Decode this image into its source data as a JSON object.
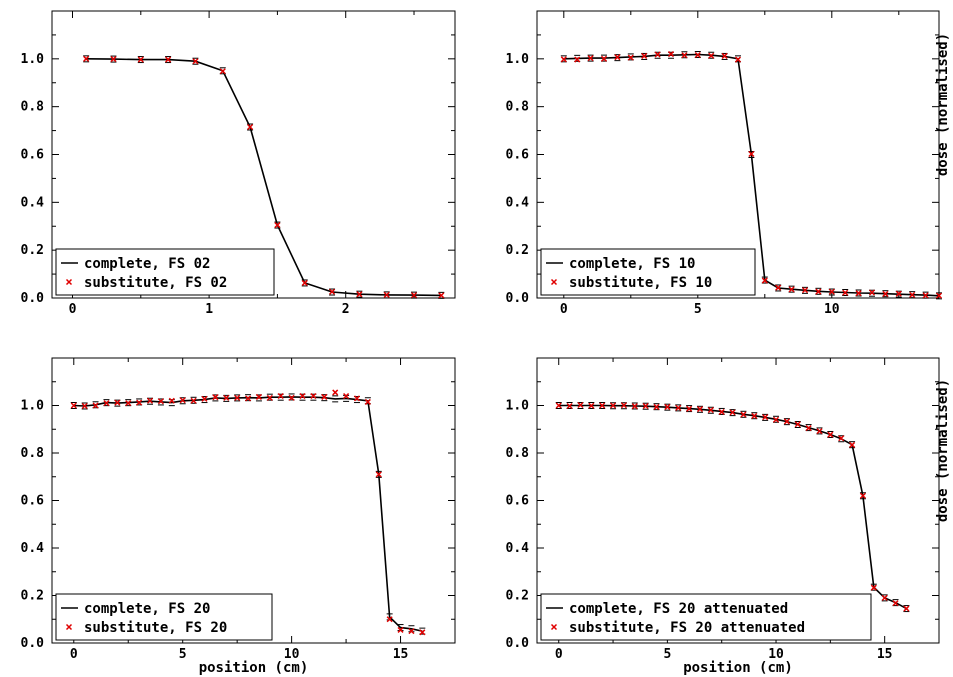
{
  "colors": {
    "complete_line": "#000000",
    "substitute_marker": "#e00000",
    "frame": "#000000",
    "background": "#ffffff"
  },
  "chart_data": [
    {
      "type": "line",
      "xlabel": "",
      "ylabel": "",
      "xlim": [
        -0.15,
        2.8
      ],
      "ylim": [
        0.0,
        1.2
      ],
      "x_ticks": [
        0,
        1,
        2
      ],
      "y_ticks": [
        0.0,
        0.2,
        0.4,
        0.6,
        0.8,
        1.0
      ],
      "legend": {
        "placement": "bottom-left",
        "entries": [
          "complete, FS 02",
          "substitute, FS 02"
        ]
      },
      "series": [
        {
          "name": "complete, FS 02",
          "style": "line",
          "x": [
            0.1,
            0.3,
            0.5,
            0.7,
            0.9,
            1.1,
            1.3,
            1.5,
            1.7,
            1.9,
            2.1,
            2.3,
            2.5,
            2.7
          ],
          "y": [
            1.0,
            0.999,
            0.997,
            0.997,
            0.99,
            0.95,
            0.715,
            0.305,
            0.063,
            0.025,
            0.016,
            0.013,
            0.012,
            0.011
          ]
        },
        {
          "name": "substitute, FS 02",
          "style": "marker",
          "x": [
            0.1,
            0.3,
            0.5,
            0.7,
            0.9,
            1.1,
            1.3,
            1.5,
            1.7,
            1.9,
            2.1,
            2.3,
            2.5,
            2.7
          ],
          "y": [
            1.0,
            0.999,
            0.997,
            0.997,
            0.99,
            0.948,
            0.715,
            0.305,
            0.063,
            0.026,
            0.016,
            0.013,
            0.012,
            0.011
          ]
        }
      ]
    },
    {
      "type": "line",
      "xlabel": "",
      "ylabel": "dose (normalised)",
      "xlim": [
        -1.0,
        14.0
      ],
      "ylim": [
        0.0,
        1.2
      ],
      "x_ticks": [
        0,
        5,
        10
      ],
      "y_ticks": [
        0.0,
        0.2,
        0.4,
        0.6,
        0.8,
        1.0
      ],
      "legend": {
        "placement": "bottom-left",
        "entries": [
          "complete, FS 10",
          "substitute, FS 10"
        ]
      },
      "series": [
        {
          "name": "complete, FS 10",
          "style": "line",
          "x": [
            0,
            0.5,
            1,
            1.5,
            2,
            2.5,
            3,
            3.5,
            4,
            4.5,
            5,
            5.5,
            6,
            6.5,
            7,
            7.5,
            8,
            8.5,
            9,
            9.5,
            10,
            10.5,
            11,
            11.5,
            12,
            12.5,
            13,
            13.5,
            14
          ],
          "y": [
            1.0,
            1.002,
            1.003,
            1.003,
            1.005,
            1.008,
            1.01,
            1.015,
            1.015,
            1.017,
            1.018,
            1.015,
            1.01,
            1.0,
            0.6,
            0.075,
            0.042,
            0.037,
            0.032,
            0.028,
            0.025,
            0.023,
            0.021,
            0.02,
            0.018,
            0.016,
            0.014,
            0.012,
            0.009
          ]
        },
        {
          "name": "substitute, FS 10",
          "style": "marker",
          "x": [
            0,
            0.5,
            1,
            1.5,
            2,
            2.5,
            3,
            3.5,
            4,
            4.5,
            5,
            5.5,
            6,
            6.5,
            7,
            7.5,
            8,
            8.5,
            9,
            9.5,
            10,
            10.5,
            11,
            11.5,
            12,
            12.5,
            13,
            13.5,
            14
          ],
          "y": [
            0.998,
            0.997,
            1.003,
            1.0,
            1.007,
            1.005,
            1.012,
            1.018,
            1.02,
            1.015,
            1.016,
            1.013,
            1.012,
            0.997,
            0.602,
            0.073,
            0.043,
            0.036,
            0.033,
            0.027,
            0.026,
            0.022,
            0.02,
            0.023,
            0.017,
            0.018,
            0.013,
            0.011,
            0.01
          ]
        }
      ]
    },
    {
      "type": "line",
      "xlabel": "position (cm)",
      "ylabel": "",
      "xlim": [
        -1.0,
        17.5
      ],
      "ylim": [
        0.0,
        1.2
      ],
      "x_ticks": [
        0,
        5,
        10,
        15
      ],
      "y_ticks": [
        0.0,
        0.2,
        0.4,
        0.6,
        0.8,
        1.0
      ],
      "legend": {
        "placement": "bottom-left",
        "entries": [
          "complete, FS 20",
          "substitute, FS 20"
        ]
      },
      "series": [
        {
          "name": "complete, FS 20",
          "style": "line",
          "x": [
            0,
            0.5,
            1,
            1.5,
            2,
            2.5,
            3,
            3.5,
            4,
            4.5,
            5,
            5.5,
            6,
            6.5,
            7,
            7.5,
            8,
            8.5,
            9,
            9.5,
            10,
            10.5,
            11,
            11.5,
            12,
            12.5,
            13,
            13.5,
            14,
            14.5,
            15,
            15.5,
            16
          ],
          "y": [
            1.0,
            0.998,
            1.003,
            1.012,
            1.01,
            1.012,
            1.015,
            1.018,
            1.015,
            1.012,
            1.02,
            1.022,
            1.025,
            1.032,
            1.03,
            1.032,
            1.033,
            1.032,
            1.035,
            1.035,
            1.036,
            1.035,
            1.035,
            1.033,
            1.028,
            1.03,
            1.025,
            1.02,
            0.71,
            0.11,
            0.065,
            0.06,
            0.05
          ]
        },
        {
          "name": "substitute, FS 20",
          "style": "marker",
          "x": [
            0,
            0.5,
            1,
            1.5,
            2,
            2.5,
            3,
            3.5,
            4,
            4.5,
            5,
            5.5,
            6,
            6.5,
            7,
            7.5,
            8,
            8.5,
            9,
            9.5,
            10,
            10.5,
            11,
            11.5,
            12,
            12.5,
            13,
            13.5,
            14,
            14.5,
            15,
            15.5,
            16
          ],
          "y": [
            1.0,
            0.998,
            1.0,
            1.01,
            1.012,
            1.01,
            1.012,
            1.02,
            1.018,
            1.02,
            1.022,
            1.02,
            1.028,
            1.035,
            1.032,
            1.032,
            1.03,
            1.036,
            1.032,
            1.04,
            1.032,
            1.04,
            1.04,
            1.036,
            1.055,
            1.04,
            1.03,
            1.015,
            0.71,
            0.1,
            0.055,
            0.05,
            0.045
          ]
        }
      ]
    },
    {
      "type": "line",
      "xlabel": "position (cm)",
      "ylabel": "dose (normalised)",
      "xlim": [
        -1.0,
        17.5
      ],
      "ylim": [
        0.0,
        1.2
      ],
      "x_ticks": [
        0,
        5,
        10,
        15
      ],
      "y_ticks": [
        0.0,
        0.2,
        0.4,
        0.6,
        0.8,
        1.0
      ],
      "legend": {
        "placement": "bottom-left",
        "entries": [
          "complete, FS 20 attenuated",
          "substitute, FS 20 attenuated"
        ]
      },
      "series": [
        {
          "name": "complete, FS 20 attenuated",
          "style": "line",
          "x": [
            0,
            0.5,
            1,
            1.5,
            2,
            2.5,
            3,
            3.5,
            4,
            4.5,
            5,
            5.5,
            6,
            6.5,
            7,
            7.5,
            8,
            8.5,
            9,
            9.5,
            10,
            10.5,
            11,
            11.5,
            12,
            12.5,
            13,
            13.5,
            14,
            14.5,
            15,
            15.5,
            16
          ],
          "y": [
            1.0,
            1.0,
            1.0,
            1.0,
            1.0,
            0.999,
            0.999,
            0.998,
            0.997,
            0.995,
            0.993,
            0.99,
            0.987,
            0.984,
            0.98,
            0.975,
            0.97,
            0.963,
            0.957,
            0.95,
            0.942,
            0.932,
            0.92,
            0.907,
            0.893,
            0.878,
            0.86,
            0.835,
            0.62,
            0.235,
            0.19,
            0.17,
            0.145
          ]
        },
        {
          "name": "substitute, FS 20 attenuated",
          "style": "marker",
          "x": [
            0,
            0.5,
            1,
            1.5,
            2,
            2.5,
            3,
            3.5,
            4,
            4.5,
            5,
            5.5,
            6,
            6.5,
            7,
            7.5,
            8,
            8.5,
            9,
            9.5,
            10,
            10.5,
            11,
            11.5,
            12,
            12.5,
            13,
            13.5,
            14,
            14.5,
            15,
            15.5,
            16
          ],
          "y": [
            1.0,
            0.998,
            1.002,
            0.999,
            1.0,
            1.0,
            1.001,
            0.997,
            0.998,
            0.994,
            0.994,
            0.99,
            0.986,
            0.985,
            0.981,
            0.973,
            0.971,
            0.962,
            0.956,
            0.951,
            0.94,
            0.933,
            0.921,
            0.905,
            0.892,
            0.877,
            0.862,
            0.834,
            0.62,
            0.233,
            0.19,
            0.168,
            0.145
          ]
        }
      ]
    }
  ]
}
